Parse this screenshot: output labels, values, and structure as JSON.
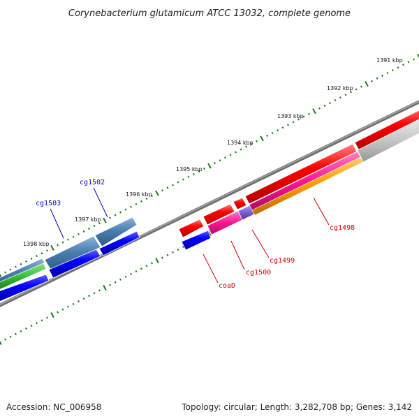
{
  "title": "Corynebacterium glutamicum ATCC 13032, complete genome",
  "footer": {
    "accession": "Accession: NC_006958",
    "summary": "Topology: circular; Length: 3,282,708 bp; Genes: 3,142"
  },
  "scale_labels": [
    "1391 kbp",
    "1392 kbp",
    "1393 kbp",
    "1394 kbp",
    "1395 kbp",
    "1396 kbp",
    "1397 kbp",
    "1398 kbp"
  ],
  "gene_labels": {
    "cg1502": "cg1502",
    "cg1503": "cg1503",
    "cg1498": "cg1498",
    "cg1499": "cg1499",
    "cg1500": "cg1500",
    "coaD": "coaD"
  },
  "colors": {
    "backbone": "#808080",
    "tick": "#1a7a1a",
    "forward_cds": "#ff0000",
    "reverse_cds": "#0000ff",
    "steelblue": "#4a7fb0",
    "magenta": "#ff1493",
    "orange": "#ff9900",
    "purple": "#7a5cd0",
    "gray": "#c8c8c8",
    "green": "#33bb33",
    "label_blue": "#0000cc",
    "label_red": "#cc0000"
  }
}
